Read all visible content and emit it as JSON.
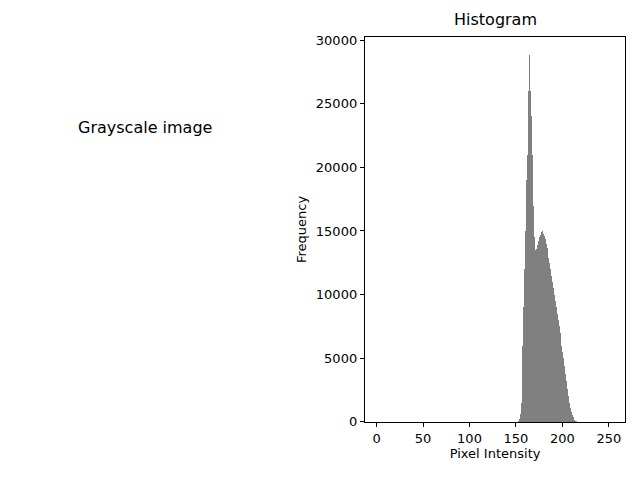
{
  "chart_data": [
    {
      "type": "image",
      "title": "Grayscale image",
      "tick_labels": false
    },
    {
      "type": "histogram",
      "title": "Histogram",
      "x_label": "Pixel Intensity",
      "y_label": "Frequency",
      "color": "#808080",
      "grid": false,
      "xlim": [
        -12.75,
        267.75
      ],
      "ylim": [
        0,
        30240
      ],
      "xticks": [
        0,
        50,
        100,
        150,
        200,
        250
      ],
      "yticks": [
        0,
        5000,
        10000,
        15000,
        20000,
        25000,
        30000
      ],
      "bins": [
        150,
        151,
        152,
        153,
        154,
        155,
        156,
        157,
        158,
        159,
        160,
        161,
        162,
        163,
        164,
        165,
        166,
        167,
        168,
        169,
        170,
        171,
        172,
        173,
        174,
        175,
        176,
        177,
        178,
        179,
        180,
        181,
        182,
        183,
        184,
        185,
        186,
        187,
        188,
        189,
        190,
        191,
        192,
        193,
        194,
        195,
        196,
        197,
        198,
        199,
        200,
        201,
        202,
        203,
        204,
        205,
        206,
        207,
        208,
        209,
        210,
        211,
        212,
        213,
        214,
        215,
        216,
        217,
        218,
        219,
        220,
        221,
        222
      ],
      "counts": [
        0,
        0,
        50,
        200,
        600,
        1500,
        3500,
        6000,
        9000,
        12000,
        15000,
        19000,
        21000,
        26000,
        28800,
        26000,
        24000,
        21000,
        17000,
        14500,
        13700,
        13500,
        13600,
        13900,
        14200,
        14500,
        14700,
        14900,
        15000,
        14800,
        14600,
        14400,
        14000,
        13700,
        13300,
        12900,
        12500,
        12000,
        11500,
        11000,
        10500,
        10000,
        9500,
        9000,
        8500,
        8000,
        7500,
        7000,
        6500,
        6000,
        5500,
        5000,
        4400,
        3800,
        3200,
        2600,
        2000,
        1500,
        1100,
        800,
        550,
        350,
        220,
        140,
        90,
        50,
        30,
        15,
        8,
        4,
        2,
        0
      ]
    }
  ]
}
